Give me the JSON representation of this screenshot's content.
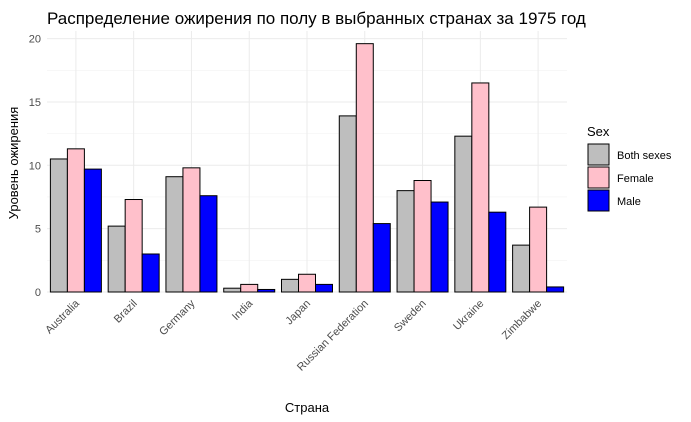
{
  "chart_data": {
    "type": "bar",
    "title": "Распределение ожирения по полу в выбранных странах за 1975 год",
    "xlabel": "Страна",
    "ylabel": "Уровень ожирения",
    "categories": [
      "Australia",
      "Brazil",
      "Germany",
      "India",
      "Japan",
      "Russian Federation",
      "Sweden",
      "Ukraine",
      "Zimbabwe"
    ],
    "series": [
      {
        "name": "Both sexes",
        "color": "#bebebe",
        "values": [
          10.5,
          5.2,
          9.1,
          0.3,
          1.0,
          13.9,
          8.0,
          12.3,
          3.7
        ]
      },
      {
        "name": "Female",
        "color": "#ffc0cb",
        "values": [
          11.3,
          7.3,
          9.8,
          0.6,
          1.4,
          19.6,
          8.8,
          16.5,
          6.7
        ]
      },
      {
        "name": "Male",
        "color": "#0000ff",
        "values": [
          9.7,
          3.0,
          7.6,
          0.2,
          0.6,
          5.4,
          7.1,
          6.3,
          0.4
        ]
      }
    ],
    "ylim": [
      0,
      20.6
    ],
    "yticks": [
      0,
      5,
      10,
      15,
      20
    ],
    "legend": {
      "title": "Sex",
      "position": "right"
    },
    "grid": true
  }
}
